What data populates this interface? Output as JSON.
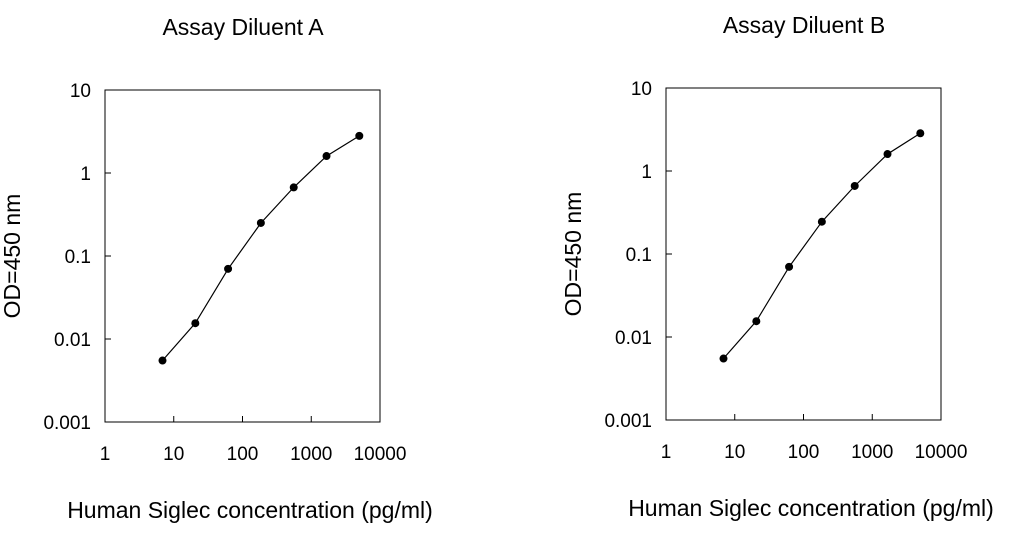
{
  "chart_data": [
    {
      "type": "line",
      "title": "Assay Diluent A",
      "xlabel": "Human Siglec concentration (pg/ml)",
      "ylabel": "OD=450 nm",
      "x_scale": "log",
      "y_scale": "log",
      "xlim": [
        1,
        10000
      ],
      "ylim": [
        0.001,
        10
      ],
      "x_ticks": [
        "1",
        "10",
        "100",
        "1000",
        "10000"
      ],
      "y_ticks": [
        "10",
        "1",
        "0.1",
        "0.01",
        "0.001"
      ],
      "grid": false,
      "series": [
        {
          "x": [
            6.86,
            20.6,
            61.7,
            185,
            556,
            1667,
            5000
          ],
          "y": [
            0.0055,
            0.0155,
            0.07,
            0.25,
            0.67,
            1.6,
            2.8
          ]
        }
      ]
    },
    {
      "type": "line",
      "title": "Assay Diluent B",
      "xlabel": "Human Siglec concentration (pg/ml)",
      "ylabel": "OD=450 nm",
      "x_scale": "log",
      "y_scale": "log",
      "xlim": [
        1,
        10000
      ],
      "ylim": [
        0.001,
        10
      ],
      "x_ticks": [
        "1",
        "10",
        "100",
        "1000",
        "10000"
      ],
      "y_ticks": [
        "10",
        "1",
        "0.1",
        "0.01",
        "0.001"
      ],
      "grid": false,
      "series": [
        {
          "x": [
            6.86,
            20.6,
            61.7,
            185,
            556,
            1667,
            5000
          ],
          "y": [
            0.0055,
            0.0155,
            0.07,
            0.245,
            0.66,
            1.6,
            2.85
          ]
        }
      ]
    }
  ]
}
